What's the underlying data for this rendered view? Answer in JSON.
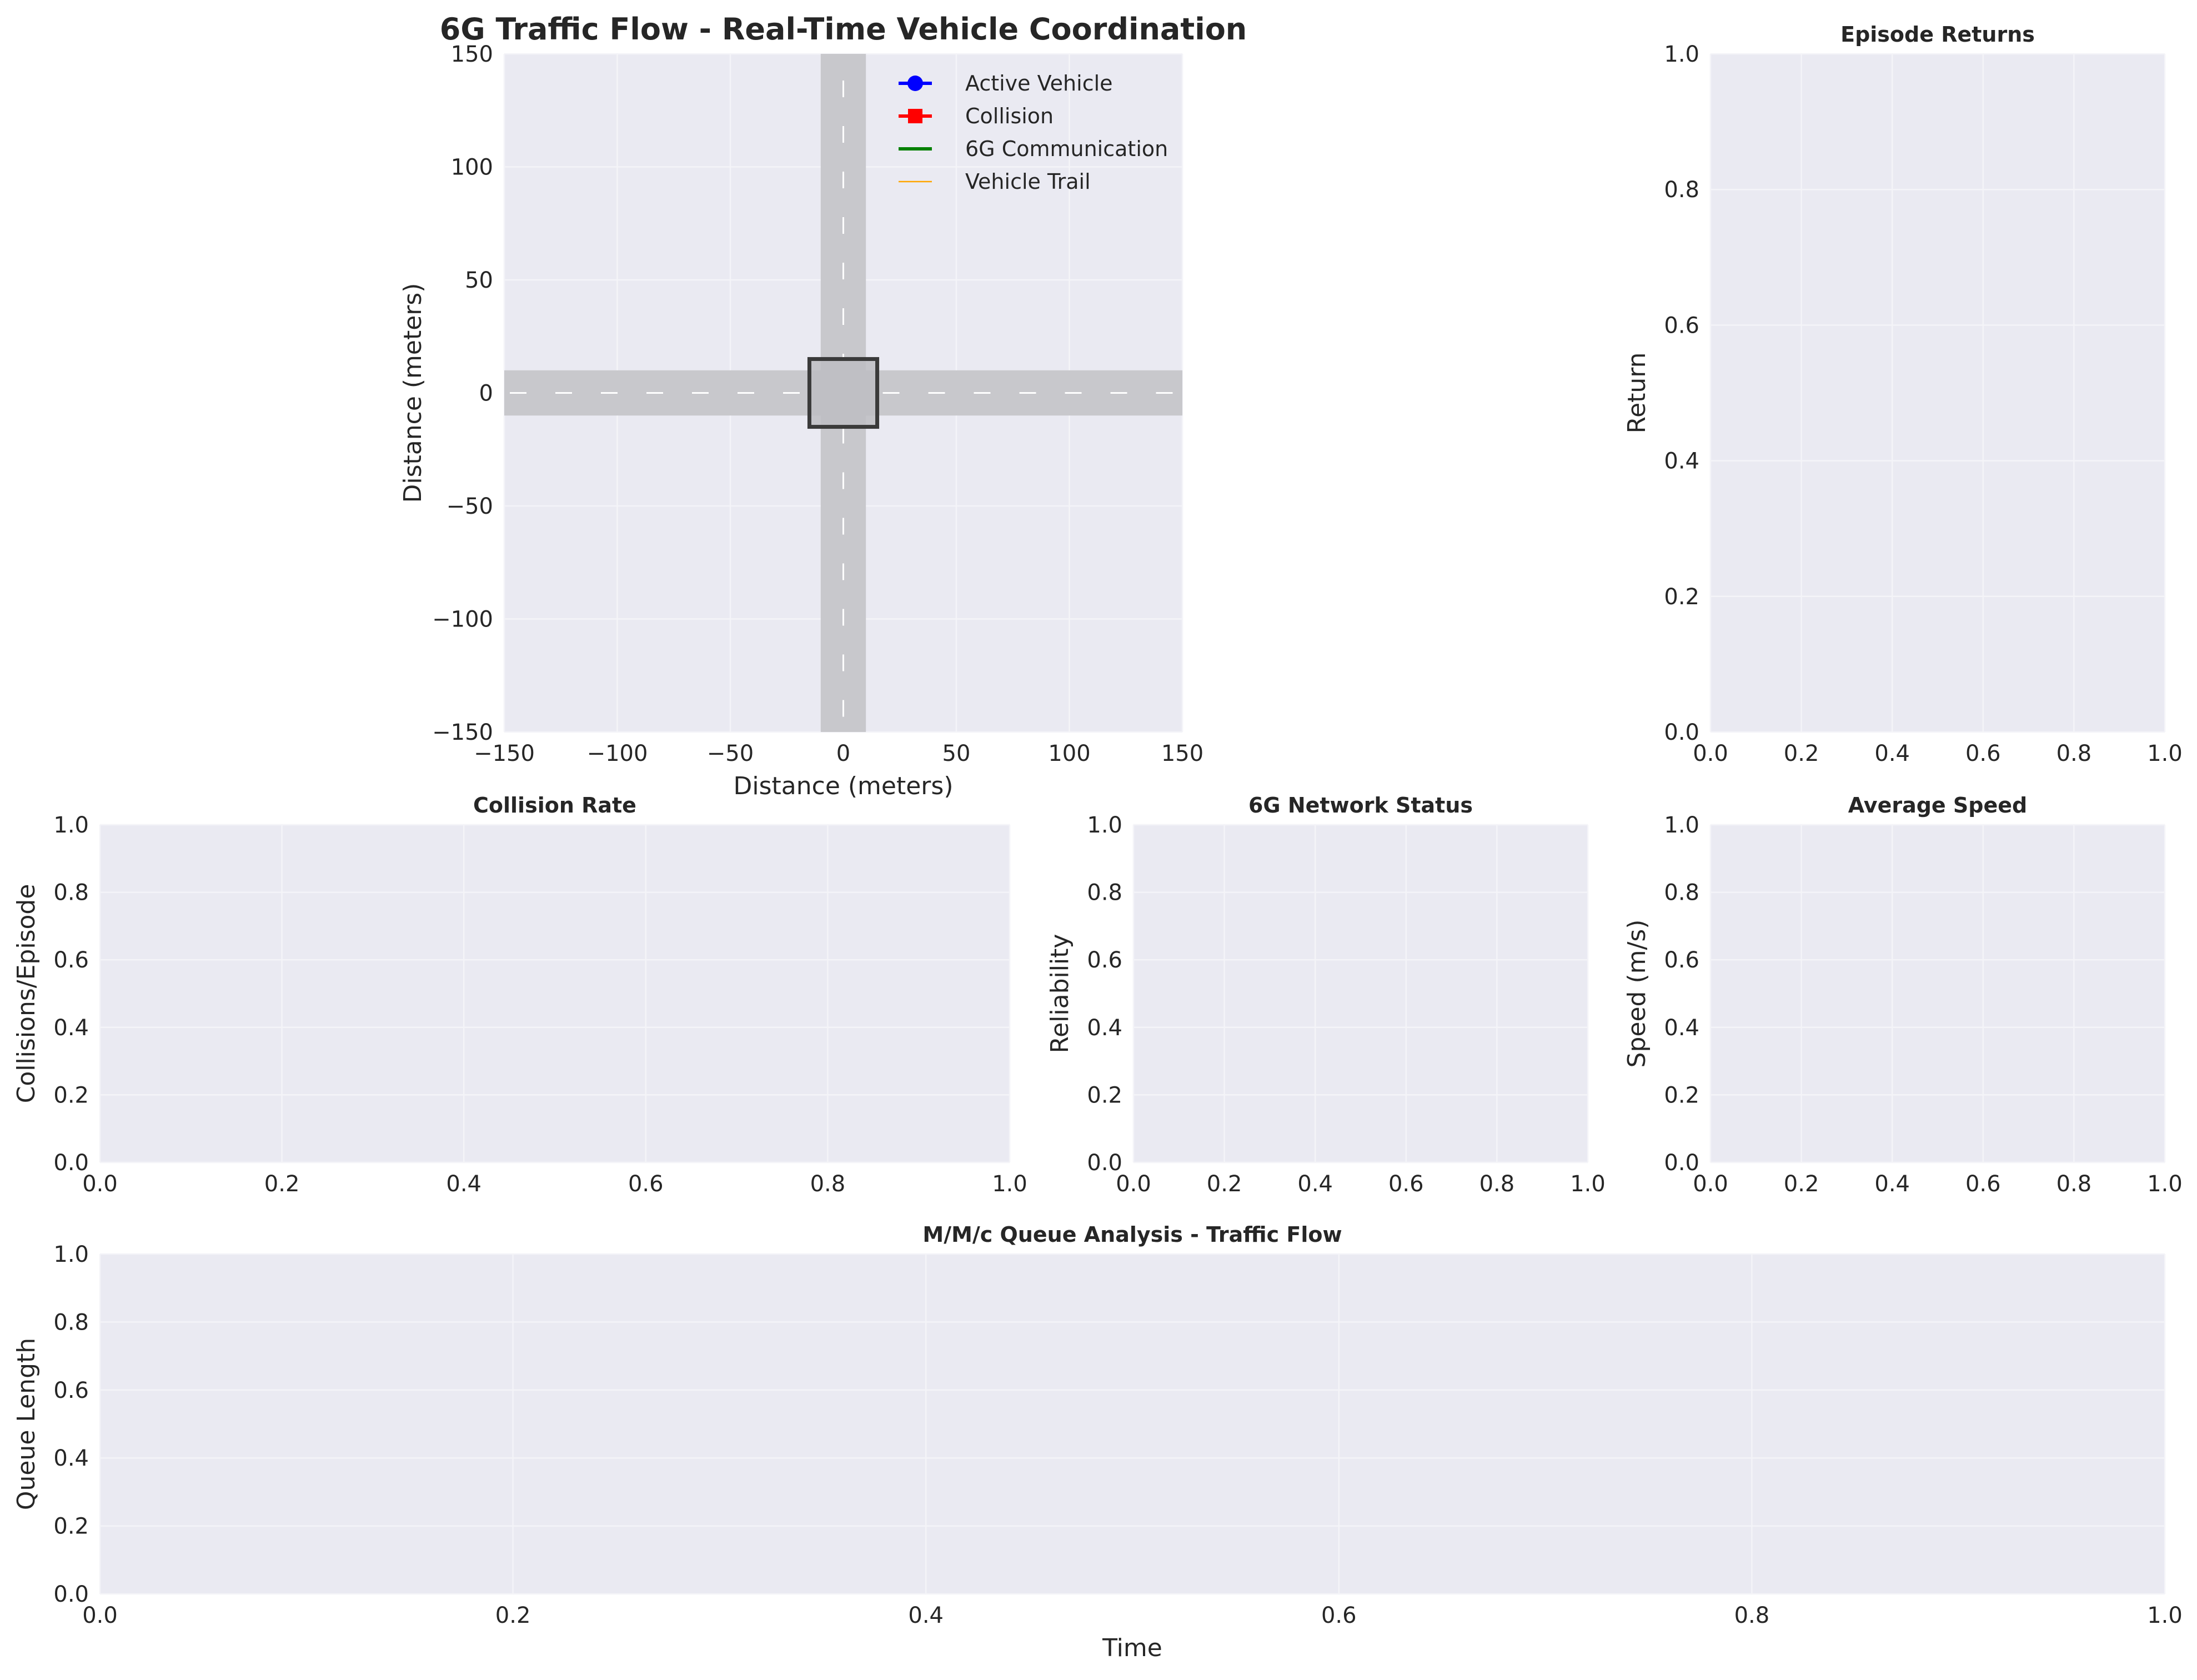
{
  "colors": {
    "axes_bg": "#eaeaf2",
    "grid": "#f4f4f8",
    "road": "#c8c8cc",
    "intersection_fill": "#bdbdc2",
    "intersection_edge": "#3a3a3a",
    "lane_marking": "#ffffff",
    "active_vehicle": "#0000ff",
    "collision": "#ff0000",
    "communication": "#008000",
    "trail": "#ffa500",
    "text": "#262626"
  },
  "chart_data": [
    {
      "id": "traffic",
      "type": "scatter",
      "title": "6G Traffic Flow - Real-Time Vehicle Coordination",
      "xlabel": "Distance (meters)",
      "ylabel": "Distance (meters)",
      "xlim": [
        -150,
        150
      ],
      "ylim": [
        -150,
        150
      ],
      "xticks": [
        -150,
        -100,
        -50,
        0,
        50,
        100,
        150
      ],
      "yticks": [
        -150,
        -100,
        -50,
        0,
        50,
        100,
        150
      ],
      "grid": true,
      "legend_position": "top-right",
      "legend": [
        {
          "label": "Active Vehicle",
          "marker": "circle",
          "color": "#0000ff"
        },
        {
          "label": "Collision",
          "marker": "square",
          "color": "#ff0000"
        },
        {
          "label": "6G Communication",
          "marker": "none",
          "color": "#008000"
        },
        {
          "label": "Vehicle Trail",
          "marker": "none",
          "color": "#ffa500"
        }
      ],
      "roads": {
        "horizontal_y": [
          -10,
          10
        ],
        "vertical_x": [
          -10,
          10
        ],
        "intersection": {
          "x": [
            -15,
            15
          ],
          "y": [
            -15,
            15
          ]
        }
      },
      "series": []
    },
    {
      "id": "returns",
      "type": "line",
      "title": "Episode Returns",
      "xlabel": "",
      "ylabel": "Return",
      "xlim": [
        0,
        1
      ],
      "ylim": [
        0,
        1
      ],
      "xticks": [
        0.0,
        0.2,
        0.4,
        0.6,
        0.8,
        1.0
      ],
      "yticks": [
        0.0,
        0.2,
        0.4,
        0.6,
        0.8,
        1.0
      ],
      "grid": true,
      "series": []
    },
    {
      "id": "collision_rate",
      "type": "line",
      "title": "Collision Rate",
      "xlabel": "",
      "ylabel": "Collisions/Episode",
      "xlim": [
        0,
        1
      ],
      "ylim": [
        0,
        1
      ],
      "xticks": [
        0.0,
        0.2,
        0.4,
        0.6,
        0.8,
        1.0
      ],
      "yticks": [
        0.0,
        0.2,
        0.4,
        0.6,
        0.8,
        1.0
      ],
      "grid": true,
      "series": []
    },
    {
      "id": "network",
      "type": "line",
      "title": "6G Network Status",
      "xlabel": "",
      "ylabel": "Reliability",
      "xlim": [
        0,
        1
      ],
      "ylim": [
        0,
        1
      ],
      "xticks": [
        0.0,
        0.2,
        0.4,
        0.6,
        0.8,
        1.0
      ],
      "yticks": [
        0.0,
        0.2,
        0.4,
        0.6,
        0.8,
        1.0
      ],
      "grid": true,
      "series": []
    },
    {
      "id": "speed",
      "type": "line",
      "title": "Average Speed",
      "xlabel": "",
      "ylabel": "Speed (m/s)",
      "xlim": [
        0,
        1
      ],
      "ylim": [
        0,
        1
      ],
      "xticks": [
        0.0,
        0.2,
        0.4,
        0.6,
        0.8,
        1.0
      ],
      "yticks": [
        0.0,
        0.2,
        0.4,
        0.6,
        0.8,
        1.0
      ],
      "grid": true,
      "series": []
    },
    {
      "id": "queue",
      "type": "line",
      "title": "M/M/c Queue Analysis - Traffic Flow",
      "xlabel": "Time",
      "ylabel": "Queue Length",
      "xlim": [
        0,
        1
      ],
      "ylim": [
        0,
        1
      ],
      "xticks": [
        0.0,
        0.2,
        0.4,
        0.6,
        0.8,
        1.0
      ],
      "yticks": [
        0.0,
        0.2,
        0.4,
        0.6,
        0.8,
        1.0
      ],
      "grid": true,
      "series": []
    }
  ]
}
